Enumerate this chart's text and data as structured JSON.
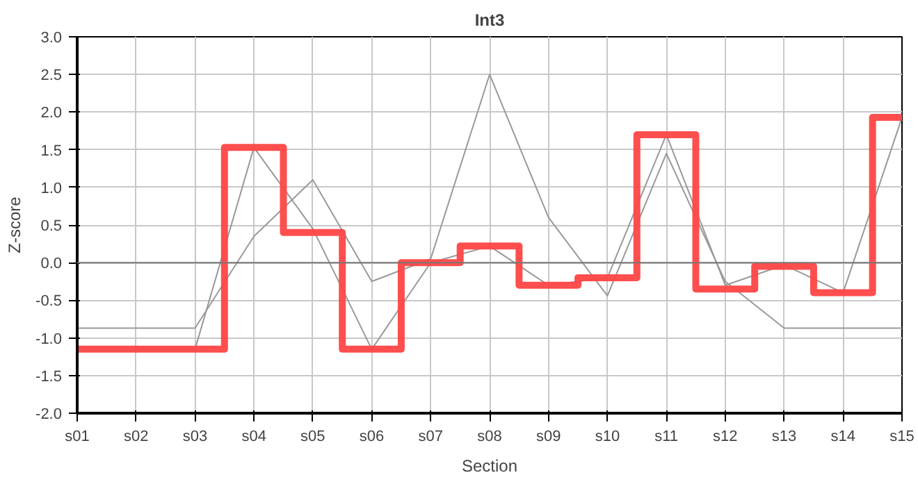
{
  "chart_data": {
    "type": "line",
    "title": "Int3",
    "xlabel": "Section",
    "ylabel": "Z-score",
    "categories": [
      "s01",
      "s02",
      "s03",
      "s04",
      "s05",
      "s06",
      "s07",
      "s08",
      "s09",
      "s10",
      "s11",
      "s12",
      "s13",
      "s14",
      "s15"
    ],
    "series": [
      {
        "color": "#999999",
        "values": [
          -0.87,
          -0.87,
          -0.87,
          0.35,
          1.1,
          -0.25,
          0.05,
          2.5,
          0.6,
          -0.44,
          1.45,
          -0.25,
          -0.87,
          -0.87,
          -0.87
        ]
      },
      {
        "color": "#999999",
        "values": [
          null,
          -1.15,
          -1.15,
          1.53,
          0.45,
          -1.15,
          0.0,
          0.22,
          -0.3,
          -0.2,
          1.7,
          -0.3,
          -0.03,
          -0.4,
          1.93
        ]
      },
      {
        "type": "step",
        "color": "#ff4444",
        "values": [
          -1.15,
          -1.15,
          -1.15,
          1.53,
          0.4,
          -1.15,
          0.0,
          0.22,
          -0.3,
          -0.2,
          1.7,
          -0.35,
          -0.05,
          -0.4,
          1.93
        ]
      }
    ],
    "ylim": [
      -2.0,
      3.0
    ],
    "yticks": [
      {
        "value": -2,
        "label": "-2.0"
      },
      {
        "value": -1.5,
        "label": "-1.5"
      },
      {
        "value": -1,
        "label": "-1.0"
      },
      {
        "value": -0.5,
        "label": "-0.5"
      },
      {
        "value": 0,
        "label": "0.0"
      },
      {
        "value": 0.5,
        "label": "0.5"
      },
      {
        "value": 1,
        "label": "1.0"
      },
      {
        "value": 1.5,
        "label": "1.5"
      },
      {
        "value": 2,
        "label": "2.0"
      },
      {
        "value": 2.5,
        "label": "2.5"
      },
      {
        "value": 3,
        "label": "3.0"
      }
    ],
    "ref_lines": [
      {
        "axis": "y",
        "value": 0,
        "color": "#777777"
      }
    ],
    "grid": true
  }
}
